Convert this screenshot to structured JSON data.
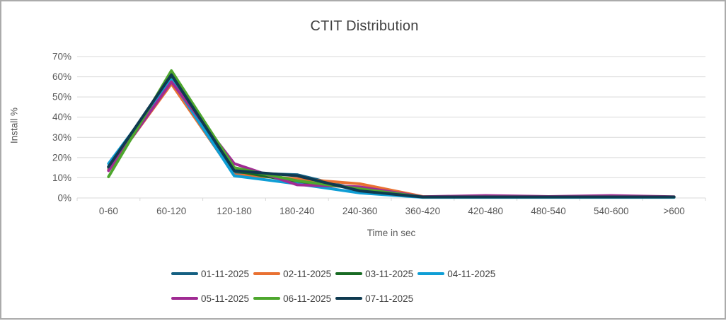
{
  "chart": {
    "title": "CTIT Distribution",
    "x_axis_title": "Time in sec",
    "y_axis_title": "Install %"
  },
  "chart_data": {
    "type": "line",
    "title": "CTIT Distribution",
    "xlabel": "Time in sec",
    "ylabel": "Install %",
    "categories": [
      "0-60",
      "60-120",
      "120-180",
      "180-240",
      "240-360",
      "360-420",
      "420-480",
      "480-540",
      "540-600",
      ">600"
    ],
    "series": [
      {
        "name": "01-11-2025",
        "color": "#156082",
        "values": [
          15.5,
          59.5,
          12.5,
          11.5,
          4.0,
          0.5,
          0.5,
          0.5,
          0.5,
          0.5
        ]
      },
      {
        "name": "02-11-2025",
        "color": "#E97132",
        "values": [
          14.0,
          56.5,
          11.5,
          9.5,
          7.0,
          0.7,
          0.5,
          0.5,
          0.5,
          0.5
        ]
      },
      {
        "name": "03-11-2025",
        "color": "#196B24",
        "values": [
          15.0,
          60.5,
          13.5,
          8.0,
          5.0,
          0.5,
          0.5,
          0.5,
          0.5,
          0.5
        ]
      },
      {
        "name": "04-11-2025",
        "color": "#0F9ED5",
        "values": [
          17.0,
          58.5,
          11.0,
          7.0,
          2.5,
          0.3,
          0.3,
          0.3,
          0.3,
          0.3
        ]
      },
      {
        "name": "05-11-2025",
        "color": "#A02B93",
        "values": [
          13.5,
          57.5,
          17.0,
          6.5,
          5.5,
          0.6,
          1.2,
          0.7,
          1.2,
          0.6
        ]
      },
      {
        "name": "06-11-2025",
        "color": "#4EA72E",
        "values": [
          10.5,
          63.0,
          15.0,
          8.5,
          4.5,
          0.5,
          0.5,
          0.5,
          0.5,
          0.5
        ]
      },
      {
        "name": "07-11-2025",
        "color": "#0F3A50",
        "values": [
          15.5,
          61.0,
          13.5,
          11.0,
          3.5,
          0.5,
          0.5,
          0.5,
          0.5,
          0.5
        ]
      }
    ],
    "ylim": [
      0,
      70
    ],
    "y_ticks": [
      0,
      10,
      20,
      30,
      40,
      50,
      60,
      70
    ],
    "y_tick_suffix": "%",
    "grid": true,
    "grid_color": "#D9D9D9",
    "legend_position": "bottom"
  }
}
